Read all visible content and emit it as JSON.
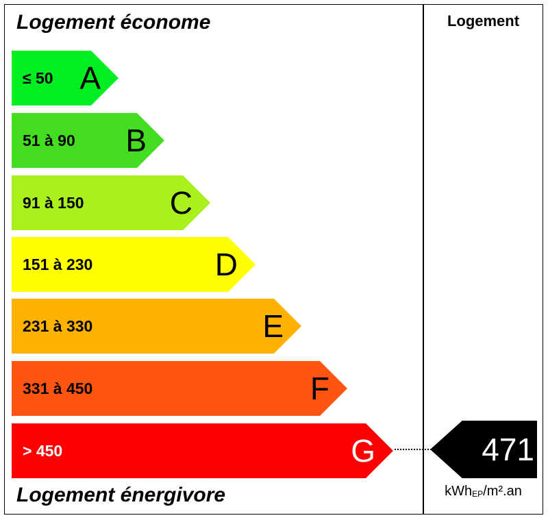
{
  "header": {
    "left_title": "Logement économe",
    "right_title": "Logement"
  },
  "footer": {
    "left_title": "Logement énergivore"
  },
  "ratings": [
    {
      "range": "≤ 50",
      "letter": "A",
      "color": "#00ee22",
      "text_color": "#000000"
    },
    {
      "range": "51 à 90",
      "letter": "B",
      "color": "#44dd22",
      "text_color": "#000000"
    },
    {
      "range": "91 à 150",
      "letter": "C",
      "color": "#aaf01c",
      "text_color": "#000000"
    },
    {
      "range": "151 à 230",
      "letter": "D",
      "color": "#ffff00",
      "text_color": "#000000"
    },
    {
      "range": "231 à 330",
      "letter": "E",
      "color": "#ffb300",
      "text_color": "#000000"
    },
    {
      "range": "331 à 450",
      "letter": "F",
      "color": "#ff5511",
      "text_color": "#000000"
    },
    {
      "range": "> 450",
      "letter": "G",
      "color": "#ff0000",
      "text_color": "#ffffff"
    }
  ],
  "result": {
    "value": "471",
    "unit_main": "kWh",
    "unit_sub": "EP",
    "unit_rest": "/m².an",
    "rating": "G"
  }
}
